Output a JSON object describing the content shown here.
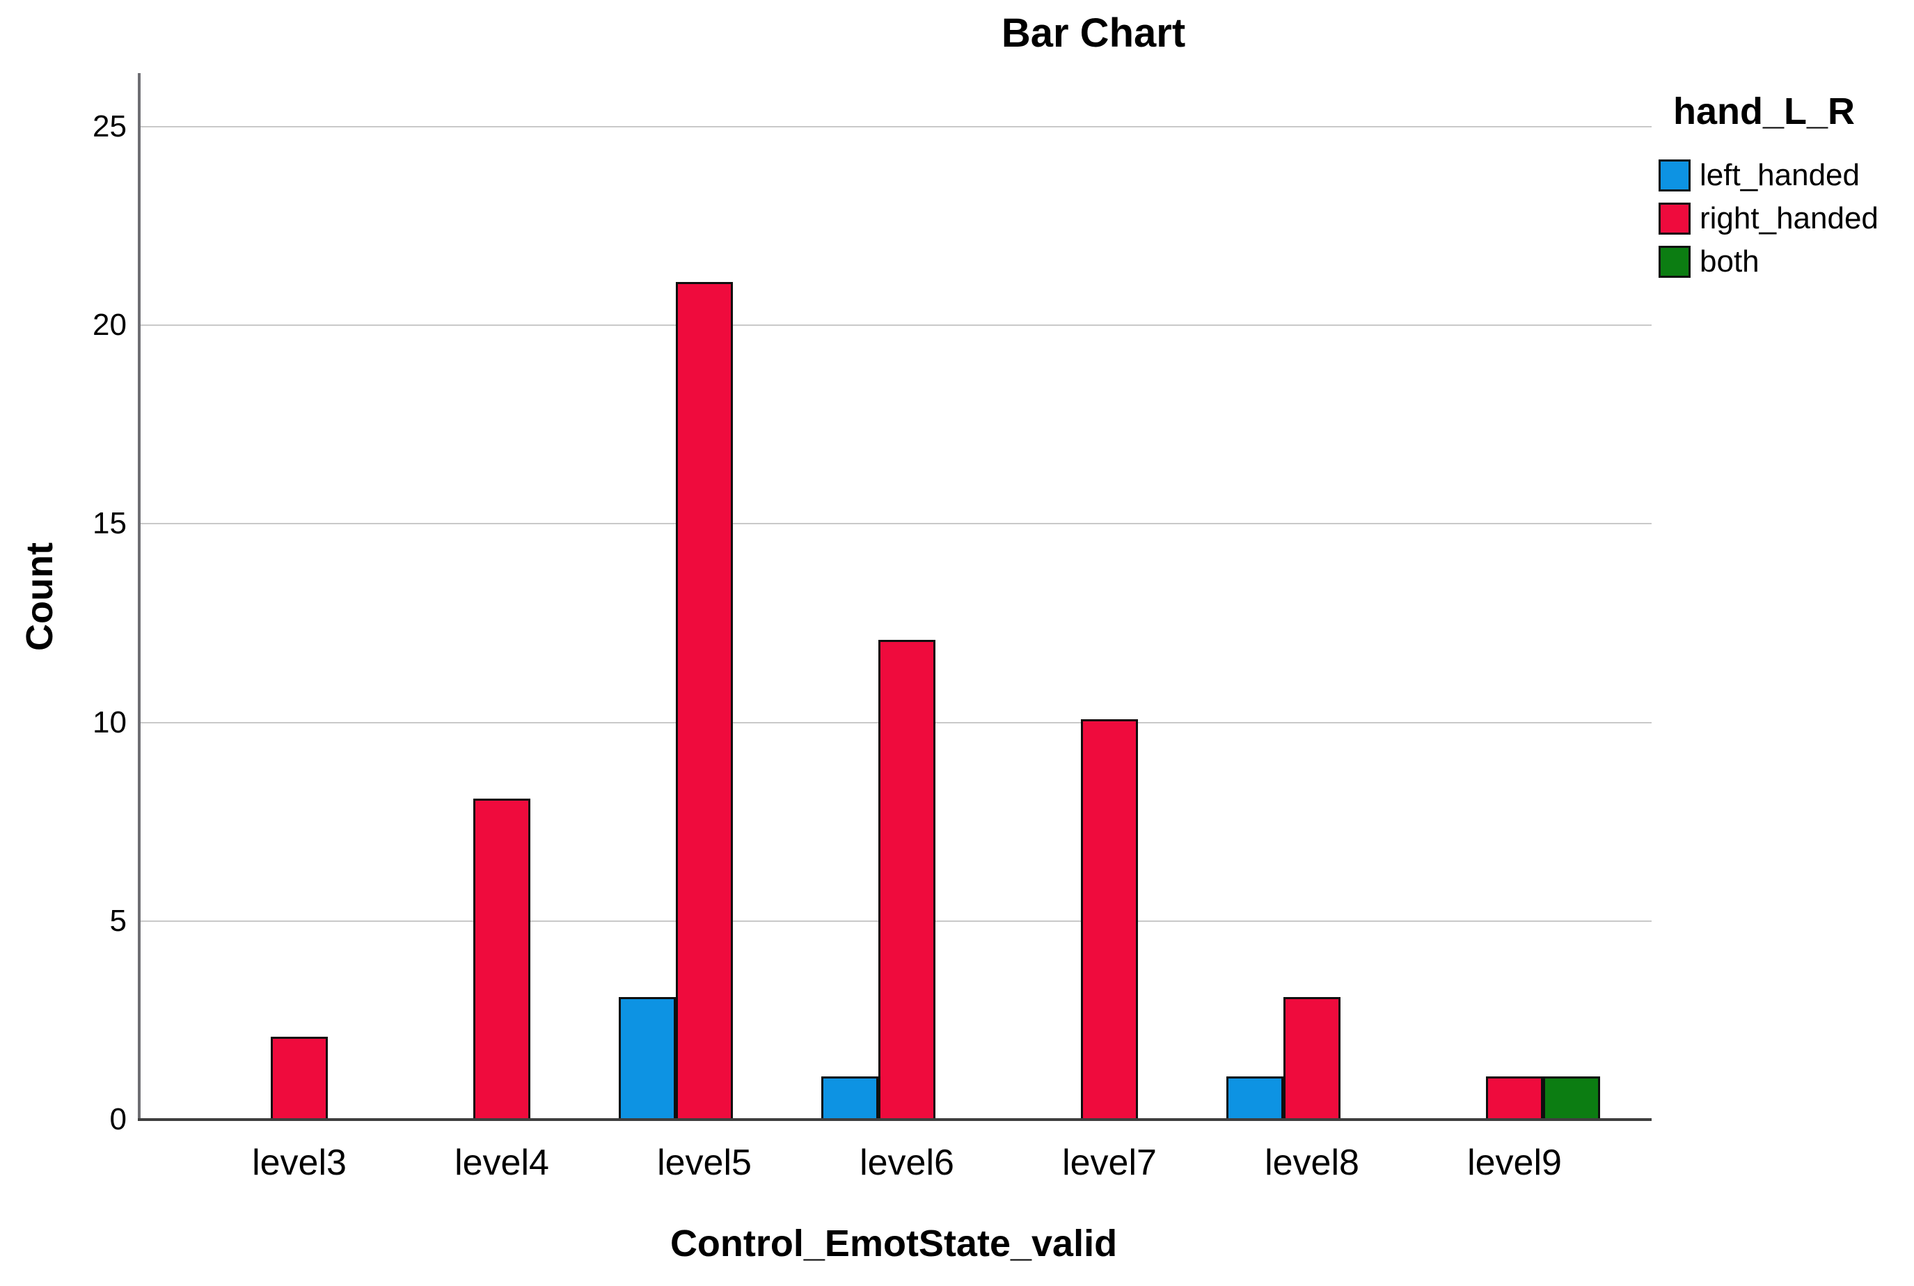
{
  "figure": {
    "title": "Bar Chart"
  },
  "chart_data": {
    "type": "bar",
    "title": "Bar Chart",
    "xlabel": "Control_EmotState_valid",
    "ylabel": "Count",
    "categories": [
      "level3",
      "level4",
      "level5",
      "level6",
      "level7",
      "level8",
      "level9"
    ],
    "series": [
      {
        "name": "left_handed",
        "color": "#0D93E3",
        "values": [
          0,
          0,
          3,
          1,
          0,
          1,
          0
        ]
      },
      {
        "name": "right_handed",
        "color": "#EF0B3D",
        "values": [
          2,
          8,
          21,
          12,
          10,
          3,
          1
        ]
      },
      {
        "name": "both",
        "color": "#0C7D12",
        "values": [
          0,
          0,
          0,
          0,
          0,
          0,
          1
        ]
      }
    ],
    "ylim": [
      0,
      26.3
    ],
    "yticks": [
      0,
      5,
      10,
      15,
      20,
      25
    ],
    "grid": "horizontal",
    "legend": {
      "title": "hand_L_R",
      "position": "top-right"
    },
    "colors": {
      "bar_border": "#0f0f0f",
      "gridline": "#c9c9c9",
      "y_axis_line": "#6e6e73",
      "x_axis_line": "#3f3f3f",
      "text": "#000000",
      "background": "#ffffff"
    }
  }
}
